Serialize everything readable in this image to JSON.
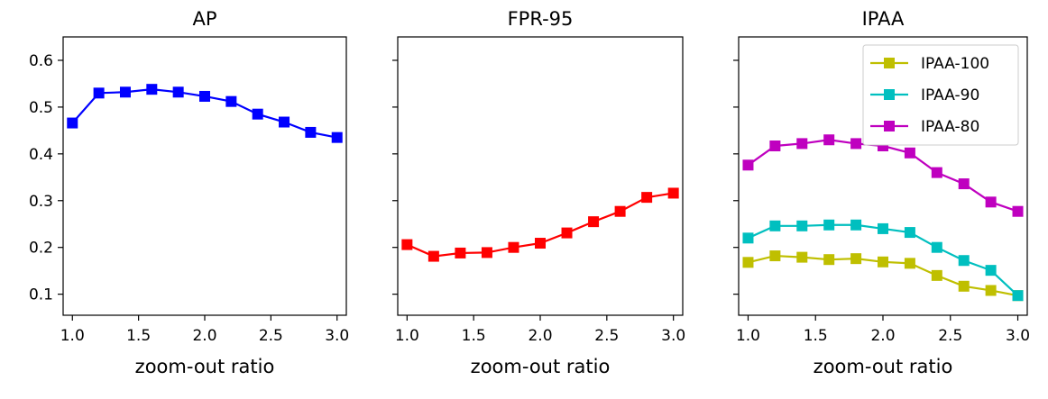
{
  "chart_data": [
    {
      "type": "line",
      "title": "AP",
      "xlabel": "zoom-out ratio",
      "ylabel": "",
      "xlim": [
        0.93,
        3.07
      ],
      "ylim": [
        0.055,
        0.65
      ],
      "xticks": [
        1.0,
        1.5,
        2.0,
        2.5,
        3.0
      ],
      "xtick_labels": [
        "1.0",
        "1.5",
        "2.0",
        "2.5",
        "3.0"
      ],
      "yticks": [
        0.1,
        0.2,
        0.3,
        0.4,
        0.5,
        0.6
      ],
      "ytick_labels": [
        "0.1",
        "0.2",
        "0.3",
        "0.4",
        "0.5",
        "0.6"
      ],
      "show_ytick_labels": true,
      "grid": false,
      "x": [
        1.0,
        1.2,
        1.4,
        1.6,
        1.8,
        2.0,
        2.2,
        2.4,
        2.6,
        2.8,
        3.0
      ],
      "series": [
        {
          "color": "#0000ff",
          "marker": "square",
          "values": [
            0.466,
            0.53,
            0.532,
            0.538,
            0.532,
            0.523,
            0.512,
            0.485,
            0.468,
            0.446,
            0.435
          ]
        }
      ]
    },
    {
      "type": "line",
      "title": "FPR-95",
      "xlabel": "zoom-out ratio",
      "ylabel": "",
      "xlim": [
        0.93,
        3.07
      ],
      "ylim": [
        0.055,
        0.65
      ],
      "xticks": [
        1.0,
        1.5,
        2.0,
        2.5,
        3.0
      ],
      "xtick_labels": [
        "1.0",
        "1.5",
        "2.0",
        "2.5",
        "3.0"
      ],
      "yticks": [
        0.1,
        0.2,
        0.3,
        0.4,
        0.5,
        0.6
      ],
      "ytick_labels": [
        "0.1",
        "0.2",
        "0.3",
        "0.4",
        "0.5",
        "0.6"
      ],
      "show_ytick_labels": false,
      "grid": false,
      "x": [
        1.0,
        1.2,
        1.4,
        1.6,
        1.8,
        2.0,
        2.2,
        2.4,
        2.6,
        2.8,
        3.0
      ],
      "series": [
        {
          "color": "#ff0000",
          "marker": "square",
          "values": [
            0.206,
            0.181,
            0.188,
            0.189,
            0.2,
            0.209,
            0.231,
            0.255,
            0.277,
            0.307,
            0.316
          ]
        }
      ]
    },
    {
      "type": "line",
      "title": "IPAA",
      "xlabel": "zoom-out ratio",
      "ylabel": "",
      "xlim": [
        0.93,
        3.07
      ],
      "ylim": [
        0.055,
        0.65
      ],
      "xticks": [
        1.0,
        1.5,
        2.0,
        2.5,
        3.0
      ],
      "xtick_labels": [
        "1.0",
        "1.5",
        "2.0",
        "2.5",
        "3.0"
      ],
      "yticks": [
        0.1,
        0.2,
        0.3,
        0.4,
        0.5,
        0.6
      ],
      "ytick_labels": [
        "0.1",
        "0.2",
        "0.3",
        "0.4",
        "0.5",
        "0.6"
      ],
      "show_ytick_labels": false,
      "grid": false,
      "legend_position": "top-right",
      "x": [
        1.0,
        1.2,
        1.4,
        1.6,
        1.8,
        2.0,
        2.2,
        2.4,
        2.6,
        2.8,
        3.0
      ],
      "series": [
        {
          "name": "IPAA-100",
          "color": "#bfbf00",
          "marker": "square",
          "values": [
            0.168,
            0.182,
            0.179,
            0.174,
            0.176,
            0.169,
            0.166,
            0.14,
            0.117,
            0.108,
            0.097
          ]
        },
        {
          "name": "IPAA-90",
          "color": "#00bfbf",
          "marker": "square",
          "values": [
            0.22,
            0.246,
            0.246,
            0.248,
            0.248,
            0.24,
            0.232,
            0.2,
            0.172,
            0.151,
            0.097
          ]
        },
        {
          "name": "IPAA-80",
          "color": "#bf00bf",
          "marker": "square",
          "values": [
            0.376,
            0.417,
            0.422,
            0.43,
            0.422,
            0.417,
            0.402,
            0.36,
            0.336,
            0.297,
            0.277
          ]
        }
      ]
    }
  ]
}
